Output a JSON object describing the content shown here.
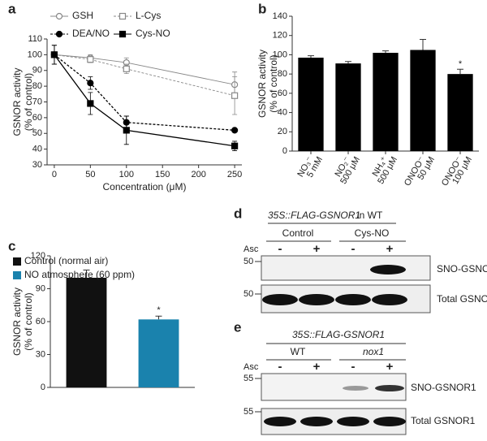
{
  "chart_data": [
    {
      "type": "line",
      "panel_label": "a",
      "x": [
        0,
        50,
        100,
        250
      ],
      "xlim": [
        -10,
        260
      ],
      "xticks": [
        0,
        50,
        100,
        150,
        200,
        250
      ],
      "ylim": [
        30,
        110
      ],
      "yticks": [
        30,
        40,
        50,
        60,
        70,
        80,
        90,
        100,
        110
      ],
      "xlabel": "Concentration (μM)",
      "ylabel": [
        "GSNOR activity",
        "(% of control)"
      ],
      "series": [
        {
          "name": "GSH",
          "color": "#888888",
          "marker": "circle-open",
          "dashed": false,
          "values": [
            100,
            98,
            95,
            81
          ],
          "errors": [
            6,
            2,
            3,
            8
          ]
        },
        {
          "name": "L-Cys",
          "color": "#888888",
          "marker": "square-open",
          "dashed": true,
          "values": [
            100,
            97,
            91,
            74
          ],
          "errors": [
            6,
            2,
            3,
            12
          ]
        },
        {
          "name": "DEA/NO",
          "color": "#000000",
          "marker": "circle",
          "dashed": true,
          "values": [
            100,
            82,
            57,
            52
          ],
          "errors": [
            6,
            4,
            4,
            1
          ]
        },
        {
          "name": "Cys-NO",
          "color": "#000000",
          "marker": "square",
          "dashed": false,
          "values": [
            100,
            69,
            52,
            42
          ],
          "errors": [
            6,
            7,
            9,
            3
          ]
        }
      ]
    },
    {
      "type": "bar",
      "panel_label": "b",
      "color": "#000000",
      "categories": [
        "NO₃⁻",
        "NO₂⁻",
        "NH₄⁺",
        "ONOO⁻",
        "ONOO⁻"
      ],
      "category_sublabels": [
        "5 mM",
        "500 μM",
        "500 μM",
        "50 μM",
        "100 μM"
      ],
      "values": [
        97,
        91,
        102,
        105,
        80
      ],
      "errors": [
        2,
        2,
        2,
        11,
        5
      ],
      "significance": [
        null,
        null,
        null,
        null,
        "*"
      ],
      "ylim": [
        0,
        140
      ],
      "yticks": [
        0,
        20,
        40,
        60,
        80,
        100,
        120,
        140
      ],
      "ylabel": [
        "GSNOR activity",
        "(% of control)"
      ]
    },
    {
      "type": "grouped-bar",
      "panel_label": "c",
      "series": [
        {
          "name": "Control (normal air)",
          "color": "#111111",
          "values": [
            100
          ],
          "errors": [
            7
          ],
          "significance": null
        },
        {
          "name": "NO atmosphere (60 ppm)",
          "color": "#1a82ad",
          "values": [
            62
          ],
          "errors": [
            3
          ],
          "significance": "*"
        }
      ],
      "ylim": [
        0,
        120
      ],
      "yticks": [
        0,
        30,
        60,
        90,
        120
      ],
      "ylabel": [
        "GSNOR activity",
        "(% of control)"
      ]
    }
  ],
  "blots": [
    {
      "panel_label": "d",
      "construct": "35S::FLAG-GSNOR1",
      "title_suffix": "in WT",
      "groups": [
        "Control",
        "Cys-NO"
      ],
      "treatment": "Asc",
      "lanes": [
        "-",
        "+",
        "-",
        "+"
      ],
      "markers": [
        50,
        50
      ],
      "rows": [
        "SNO-GSNOR1",
        "Total GSNOR1"
      ]
    },
    {
      "panel_label": "e",
      "construct": "35S::FLAG-GSNOR1",
      "groups": [
        "WT",
        "nox1"
      ],
      "treatment": "Asc",
      "lanes": [
        "-",
        "+",
        "-",
        "+"
      ],
      "markers": [
        55,
        55
      ],
      "rows": [
        "SNO-GSNOR1",
        "Total GSNOR1"
      ]
    }
  ]
}
